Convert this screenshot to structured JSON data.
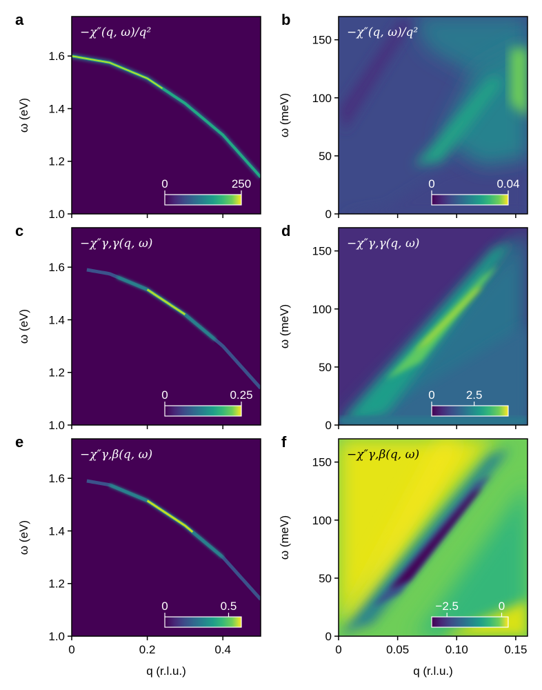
{
  "chart_data": [
    {
      "type": "heatmap",
      "panel_label": "a",
      "title": "−χ″(q, ω)/q²",
      "title_color": "#ffffff",
      "ylabel": "ω (eV)",
      "xlabel": "",
      "xlim": [
        0,
        0.5
      ],
      "ylim": [
        1.0,
        1.75
      ],
      "yticks": [
        1.0,
        1.2,
        1.4,
        1.6
      ],
      "ytick_labels": [
        "1.0",
        "1.2",
        "1.4",
        "1.6"
      ],
      "xticks": [
        0,
        0.2,
        0.4
      ],
      "xtick_labels": [],
      "colorbar": {
        "labels": [
          "0",
          "250"
        ],
        "min": 0,
        "max": 250,
        "colormap": "viridis"
      },
      "dispersion": {
        "q": [
          0,
          0.1,
          0.2,
          0.3,
          0.4,
          0.5
        ],
        "omega": [
          1.6,
          1.575,
          1.515,
          1.42,
          1.3,
          1.14
        ]
      }
    },
    {
      "type": "heatmap",
      "panel_label": "b",
      "title": "−χ″(q, ω)/q²",
      "title_color": "#ffffff",
      "ylabel": "ω (meV)",
      "xlabel": "",
      "xlim": [
        0,
        0.16
      ],
      "ylim": [
        0,
        170
      ],
      "yticks": [
        0,
        50,
        100,
        150
      ],
      "ytick_labels": [
        "0",
        "50",
        "100",
        "150"
      ],
      "xticks": [
        0,
        0.05,
        0.1,
        0.15
      ],
      "xtick_labels": [],
      "colorbar": {
        "labels": [
          "0",
          "0.04"
        ],
        "min": 0,
        "max": 0.04,
        "colormap": "viridis"
      }
    },
    {
      "type": "heatmap",
      "panel_label": "c",
      "title": "−χ″γ,γ(q, ω)",
      "title_color": "#ffffff",
      "ylabel": "ω (eV)",
      "xlabel": "",
      "xlim": [
        0,
        0.5
      ],
      "ylim": [
        1.0,
        1.75
      ],
      "yticks": [
        1.0,
        1.2,
        1.4,
        1.6
      ],
      "ytick_labels": [
        "1.0",
        "1.2",
        "1.4",
        "1.6"
      ],
      "xticks": [
        0,
        0.2,
        0.4
      ],
      "xtick_labels": [],
      "colorbar": {
        "labels": [
          "0",
          "0.25"
        ],
        "min": 0,
        "max": 0.25,
        "colormap": "viridis"
      }
    },
    {
      "type": "heatmap",
      "panel_label": "d",
      "title": "−χ″γ,γ(q, ω)",
      "title_color": "#ffffff",
      "ylabel": "ω (meV)",
      "xlabel": "",
      "xlim": [
        0,
        0.16
      ],
      "ylim": [
        0,
        170
      ],
      "yticks": [
        0,
        50,
        100,
        150
      ],
      "ytick_labels": [
        "0",
        "50",
        "100",
        "150"
      ],
      "xticks": [
        0,
        0.05,
        0.1,
        0.15
      ],
      "xtick_labels": [],
      "colorbar": {
        "labels": [
          "0",
          "2.5"
        ],
        "min": 0,
        "max": 4.5,
        "colormap": "viridis"
      }
    },
    {
      "type": "heatmap",
      "panel_label": "e",
      "title": "−χ″γ,β(q, ω)",
      "title_color": "#ffffff",
      "ylabel": "ω (eV)",
      "xlabel": "q (r.l.u.)",
      "xlim": [
        0,
        0.5
      ],
      "ylim": [
        1.0,
        1.75
      ],
      "yticks": [
        1.0,
        1.2,
        1.4,
        1.6
      ],
      "ytick_labels": [
        "1.0",
        "1.2",
        "1.4",
        "1.6"
      ],
      "xticks": [
        0,
        0.2,
        0.4
      ],
      "xtick_labels": [
        "0",
        "0.2",
        "0.4"
      ],
      "colorbar": {
        "labels": [
          "0",
          "0.5"
        ],
        "min": 0,
        "max": 0.6,
        "colormap": "viridis"
      }
    },
    {
      "type": "heatmap",
      "panel_label": "f",
      "title": "−χ″γ,β(q, ω)",
      "title_color": "#000000",
      "ylabel": "ω (meV)",
      "xlabel": "q (r.l.u.)",
      "xlim": [
        0,
        0.16
      ],
      "ylim": [
        0,
        170
      ],
      "yticks": [
        0,
        50,
        100,
        150
      ],
      "ytick_labels": [
        "0",
        "50",
        "100",
        "150"
      ],
      "xticks": [
        0,
        0.05,
        0.1,
        0.15
      ],
      "xtick_labels": [
        "0",
        "0.05",
        "0.10",
        "0.15"
      ],
      "colorbar": {
        "labels": [
          "−2.5",
          "0"
        ],
        "min": -3.2,
        "max": 0.3,
        "colormap": "viridis"
      }
    }
  ]
}
